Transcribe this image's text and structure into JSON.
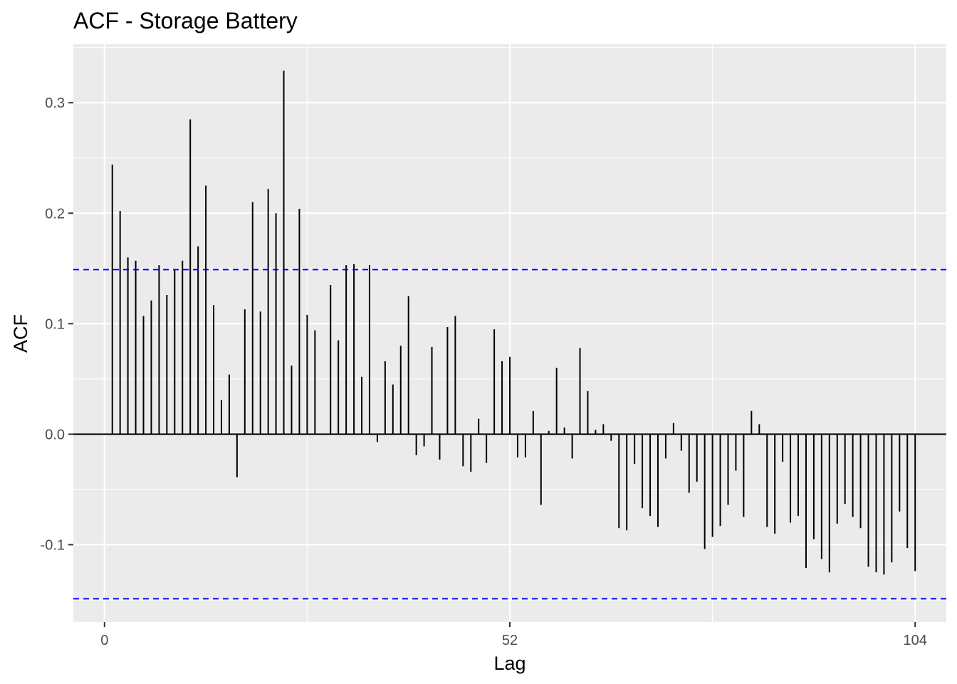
{
  "chart_data": {
    "type": "bar",
    "title": "ACF - Storage Battery",
    "xlabel": "Lag",
    "ylabel": "ACF",
    "xlim": [
      -4,
      108
    ],
    "ylim": [
      -0.17,
      0.353
    ],
    "x_ticks": [
      0,
      52,
      104
    ],
    "x_tick_labels": [
      "0",
      "52",
      "104"
    ],
    "y_ticks": [
      -0.1,
      0.0,
      0.1,
      0.2,
      0.3
    ],
    "y_tick_labels": [
      "-0.1",
      "0.0",
      "0.1",
      "0.2",
      "0.3"
    ],
    "confidence_bound": 0.149,
    "grid": true,
    "legend": "none",
    "colors": {
      "panel": "#ebebeb",
      "grid": "#ffffff",
      "bars": "#000000",
      "zero_line": "#000000",
      "confidence": "#0000ff"
    },
    "lags": [
      1,
      2,
      3,
      4,
      5,
      6,
      7,
      8,
      9,
      10,
      11,
      12,
      13,
      14,
      15,
      16,
      17,
      18,
      19,
      20,
      21,
      22,
      23,
      24,
      25,
      26,
      27,
      28,
      29,
      30,
      31,
      32,
      33,
      34,
      35,
      36,
      37,
      38,
      39,
      40,
      41,
      42,
      43,
      44,
      45,
      46,
      47,
      48,
      49,
      50,
      51,
      52,
      53,
      54,
      55,
      56,
      57,
      58,
      59,
      60,
      61,
      62,
      63,
      64,
      65,
      66,
      67,
      68,
      69,
      70,
      71,
      72,
      73,
      74,
      75,
      76,
      77,
      78,
      79,
      80,
      81,
      82,
      83,
      84,
      85,
      86,
      87,
      88,
      89,
      90,
      91,
      92,
      93,
      94,
      95,
      96,
      97,
      98,
      99,
      100,
      101,
      102,
      103,
      104
    ],
    "values": [
      0.244,
      0.202,
      0.16,
      0.157,
      0.107,
      0.121,
      0.153,
      0.126,
      0.149,
      0.157,
      0.285,
      0.17,
      0.225,
      0.117,
      0.031,
      0.054,
      -0.039,
      0.113,
      0.21,
      0.111,
      0.222,
      0.2,
      0.329,
      0.062,
      0.204,
      0.108,
      0.094,
      0.0,
      0.135,
      0.085,
      0.153,
      0.154,
      0.052,
      0.153,
      -0.007,
      0.066,
      0.045,
      0.08,
      0.125,
      -0.019,
      -0.011,
      0.079,
      -0.023,
      0.097,
      0.107,
      -0.029,
      -0.034,
      0.014,
      -0.026,
      0.095,
      0.066,
      0.07,
      -0.021,
      -0.021,
      0.021,
      -0.064,
      0.003,
      0.06,
      0.006,
      -0.022,
      0.078,
      0.039,
      0.004,
      0.009,
      -0.006,
      -0.085,
      -0.087,
      -0.027,
      -0.067,
      -0.074,
      -0.084,
      -0.022,
      0.01,
      -0.015,
      -0.053,
      -0.043,
      -0.104,
      -0.093,
      -0.083,
      -0.064,
      -0.033,
      -0.075,
      0.021,
      0.009,
      -0.084,
      -0.09,
      -0.025,
      -0.08,
      -0.074,
      -0.121,
      -0.095,
      -0.113,
      -0.125,
      -0.081,
      -0.063,
      -0.075,
      -0.085,
      -0.12,
      -0.125,
      -0.127,
      -0.116,
      -0.07,
      -0.103,
      -0.124
    ]
  }
}
